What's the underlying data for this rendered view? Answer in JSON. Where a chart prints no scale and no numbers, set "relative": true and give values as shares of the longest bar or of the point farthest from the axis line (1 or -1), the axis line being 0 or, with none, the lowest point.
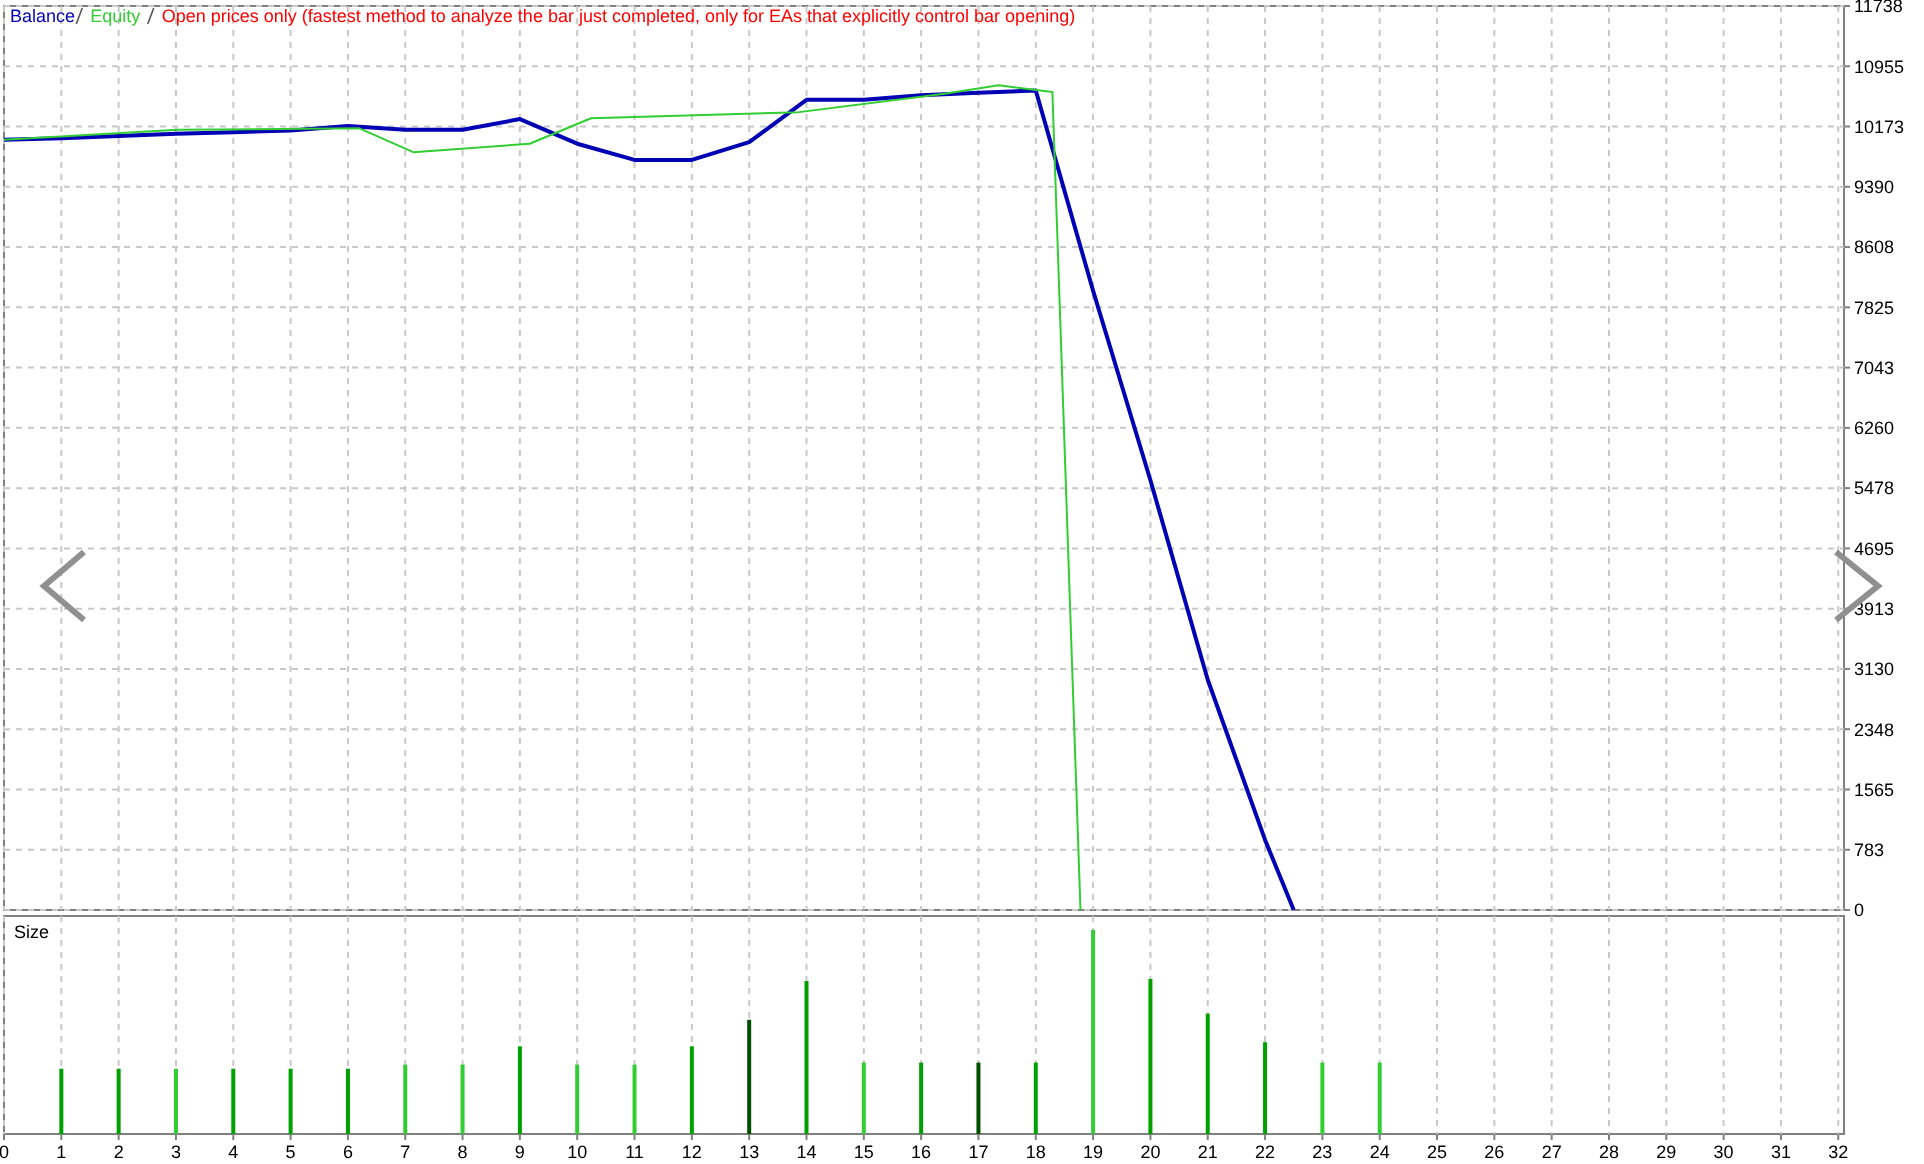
{
  "chart_data": [
    {
      "type": "line",
      "xlim": [
        0,
        32.1
      ],
      "xticks": [
        0,
        1,
        2,
        3,
        4,
        5,
        6,
        7,
        8,
        9,
        10,
        11,
        12,
        13,
        14,
        15,
        16,
        17,
        18,
        19,
        20,
        21,
        22,
        23,
        24,
        25,
        26,
        27,
        28,
        29,
        30,
        31,
        32
      ],
      "ylim": [
        0,
        11738
      ],
      "yticks": [
        0,
        {
          "value": 782.5,
          "label": "783"
        },
        {
          "value": 1565.1,
          "label": "1565"
        },
        {
          "value": 2347.6,
          "label": "2348"
        },
        {
          "value": 3130.1,
          "label": "3130"
        },
        {
          "value": 3912.7,
          "label": "3913"
        },
        {
          "value": 4695.2,
          "label": "4695"
        },
        {
          "value": 5477.7,
          "label": "5478"
        },
        {
          "value": 6260.3,
          "label": "6260"
        },
        {
          "value": 7042.8,
          "label": "7043"
        },
        {
          "value": 7825.3,
          "label": "7825"
        },
        {
          "value": 8607.9,
          "label": "8608"
        },
        {
          "value": 9390.4,
          "label": "9390"
        },
        {
          "value": 10172.9,
          "label": "10173"
        },
        {
          "value": 10955.5,
          "label": "10955"
        },
        11738
      ],
      "grid": true,
      "legend": "top left",
      "tick_labels": "y",
      "annotations": [
        "Open prices only (fastest method to analyze the bar just completed, only for EAs that explicitly control bar opening)"
      ],
      "series": [
        {
          "name": "Balance",
          "color": "#0000b4",
          "x": [
            0,
            1,
            2,
            3,
            4,
            5,
            6,
            7,
            8,
            9,
            10,
            11,
            12,
            13,
            14,
            15,
            16,
            17,
            18,
            19,
            20,
            21,
            22,
            22.5
          ],
          "values": [
            10000,
            10020,
            10050,
            10080,
            10100,
            10120,
            10180,
            10130,
            10130,
            10270,
            9950,
            9740,
            9740,
            9970,
            10520,
            10520,
            10580,
            10610,
            10640,
            8040,
            5580,
            2990,
            910,
            0
          ]
        },
        {
          "name": "Equity",
          "color": "#32cd32",
          "x": [
            0,
            3.03,
            6.2,
            7.14,
            9.17,
            10.24,
            13.87,
            16.41,
            17.35,
            18.29,
            18.78
          ],
          "values": [
            10000,
            10130,
            10150,
            9840,
            9950,
            10280,
            10360,
            10600,
            10710,
            10620,
            0
          ]
        }
      ]
    },
    {
      "type": "bar",
      "title": "Size",
      "relative": true,
      "xlim": [
        0,
        32.1
      ],
      "xticks": [
        0,
        1,
        2,
        3,
        4,
        5,
        6,
        7,
        8,
        9,
        10,
        11,
        12,
        13,
        14,
        15,
        16,
        17,
        18,
        19,
        20,
        21,
        22,
        23,
        24,
        25,
        26,
        27,
        28,
        29,
        30,
        31,
        32
      ],
      "grid": "x",
      "tick_labels": "x",
      "x": [
        1,
        2,
        3,
        4,
        5,
        6,
        7,
        8,
        9,
        10,
        11,
        12,
        13,
        14,
        15,
        16,
        17,
        18,
        19,
        20,
        21,
        22,
        23,
        24
      ],
      "values": [
        0.32,
        0.32,
        0.32,
        0.32,
        0.32,
        0.32,
        0.34,
        0.34,
        0.43,
        0.34,
        0.34,
        0.43,
        0.56,
        0.75,
        0.35,
        0.35,
        0.35,
        0.35,
        1,
        0.76,
        0.59,
        0.45,
        0.35,
        0.35
      ],
      "colors": [
        "#00a000",
        "#00a000",
        "#32cd32",
        "#00a000",
        "#00a000",
        "#00a000",
        "#32cd32",
        "#32cd32",
        "#00a000",
        "#32cd32",
        "#32cd32",
        "#00a000",
        "#005000",
        "#00a000",
        "#32cd32",
        "#00a000",
        "#005000",
        "#00a000",
        "#32cd32",
        "#00a000",
        "#00a000",
        "#00a000",
        "#32cd32",
        "#32cd32"
      ]
    }
  ]
}
